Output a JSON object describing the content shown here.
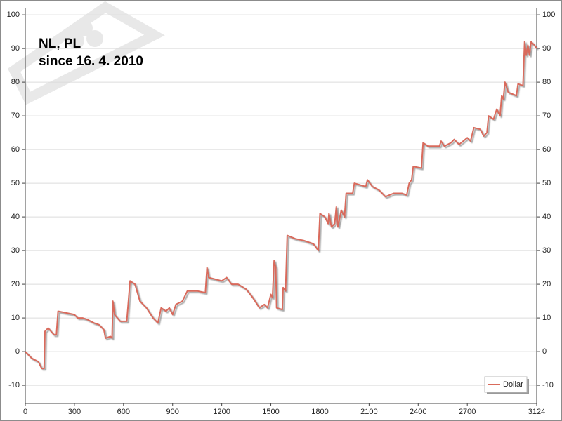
{
  "chart_data": {
    "type": "line",
    "title": "NL, PL",
    "subtitle": "since 16. 4. 2010",
    "x": [
      0,
      40,
      80,
      100,
      115,
      120,
      140,
      175,
      190,
      200,
      250,
      300,
      320,
      350,
      380,
      420,
      450,
      480,
      490,
      520,
      530,
      535,
      545,
      580,
      620,
      640,
      670,
      700,
      740,
      780,
      810,
      830,
      860,
      880,
      900,
      920,
      960,
      990,
      1050,
      1100,
      1110,
      1120,
      1200,
      1230,
      1260,
      1300,
      1350,
      1390,
      1430,
      1460,
      1480,
      1500,
      1510,
      1520,
      1530,
      1535,
      1570,
      1575,
      1590,
      1600,
      1650,
      1700,
      1760,
      1790,
      1800,
      1830,
      1850,
      1855,
      1870,
      1890,
      1900,
      1910,
      1930,
      1950,
      1960,
      2000,
      2010,
      2080,
      2090,
      2120,
      2160,
      2200,
      2250,
      2300,
      2330,
      2345,
      2360,
      2370,
      2420,
      2430,
      2460,
      2530,
      2540,
      2560,
      2600,
      2620,
      2650,
      2700,
      2720,
      2740,
      2780,
      2800,
      2820,
      2830,
      2860,
      2880,
      2900,
      2910,
      2920,
      2930,
      2950,
      3000,
      3010,
      3040,
      3050,
      3060,
      3070,
      3080,
      3090,
      3110,
      3124
    ],
    "series": [
      {
        "name": "Dollar",
        "color": "#d96b5b",
        "values": [
          0,
          -2,
          -3,
          -5,
          -5,
          6,
          7,
          5,
          5,
          12,
          11.5,
          11,
          10,
          10,
          9.5,
          8.5,
          8,
          6.5,
          4,
          4.5,
          4,
          15,
          11,
          9,
          9,
          21,
          20,
          15,
          13,
          10,
          8.5,
          13,
          12,
          13,
          11,
          14,
          15,
          18,
          18,
          17.5,
          25,
          22,
          21,
          22,
          20,
          20,
          18.5,
          16,
          13,
          14,
          13,
          17,
          16,
          27,
          25,
          13,
          12.5,
          19,
          18,
          34.5,
          33.5,
          33,
          32,
          30,
          41,
          40,
          38,
          41,
          37,
          38,
          43,
          37,
          42,
          40,
          47,
          47,
          50,
          49,
          51,
          49,
          48,
          46,
          47,
          47,
          46.5,
          50,
          51,
          55,
          54.5,
          62,
          61,
          61,
          62.5,
          61,
          62,
          63,
          61.5,
          63.5,
          62.5,
          66.5,
          66,
          64,
          65,
          70,
          69,
          72,
          70,
          76,
          75,
          80,
          77,
          76,
          79.5,
          79,
          92,
          88,
          91,
          88,
          92,
          91,
          90
        ]
      }
    ],
    "xlim": [
      0,
      3124
    ],
    "xticks": [
      0,
      300,
      600,
      900,
      1200,
      1500,
      1800,
      2100,
      2400,
      2700,
      3124
    ],
    "ylim": [
      -15.4,
      101.9
    ],
    "yticks": [
      -10,
      0,
      10,
      20,
      30,
      40,
      50,
      60,
      70,
      80,
      90,
      100
    ],
    "y2lim": [
      -15.4,
      101.9
    ],
    "y2ticks": [
      -10,
      0,
      10,
      20,
      30,
      40,
      50,
      60,
      70,
      80,
      90,
      100
    ],
    "grid": true,
    "legend": "bottom-right"
  }
}
